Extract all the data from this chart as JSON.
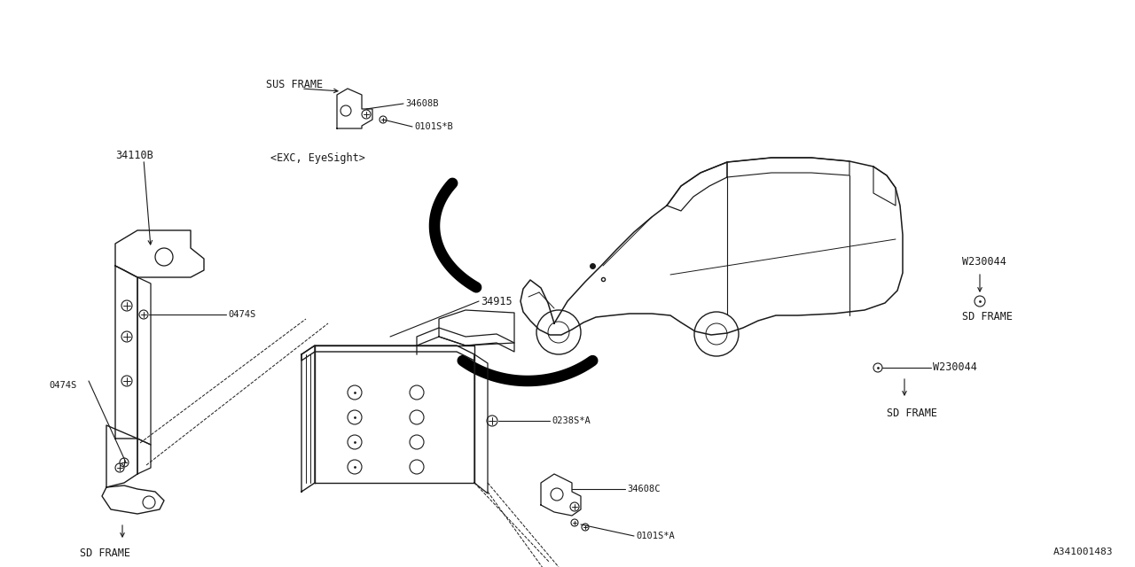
{
  "bg_color": "#ffffff",
  "line_color": "#1a1a1a",
  "part_number": "A341001483",
  "labels": {
    "sus_frame": "SUS FRAME",
    "exc_eyesight": "<EXC, EyeSight>",
    "34110B": "34110B",
    "34608B": "34608B",
    "0101S_B": "0101S*B",
    "0474S_upper": "0474S",
    "0474S_lower": "0474S",
    "34915": "34915",
    "0238S_A": "0238S*A",
    "34608C": "34608C",
    "0101S_A": "0101S*A",
    "W230044_upper": "W230044",
    "W230044_lower": "W230044",
    "SD_FRAME_right_upper": "SD FRAME",
    "SD_FRAME_right_lower": "SD FRAME",
    "SD_FRAME_left": "SD FRAME"
  },
  "font_size": 8.5,
  "font_size_small": 7.5,
  "font_size_part": 8.0
}
